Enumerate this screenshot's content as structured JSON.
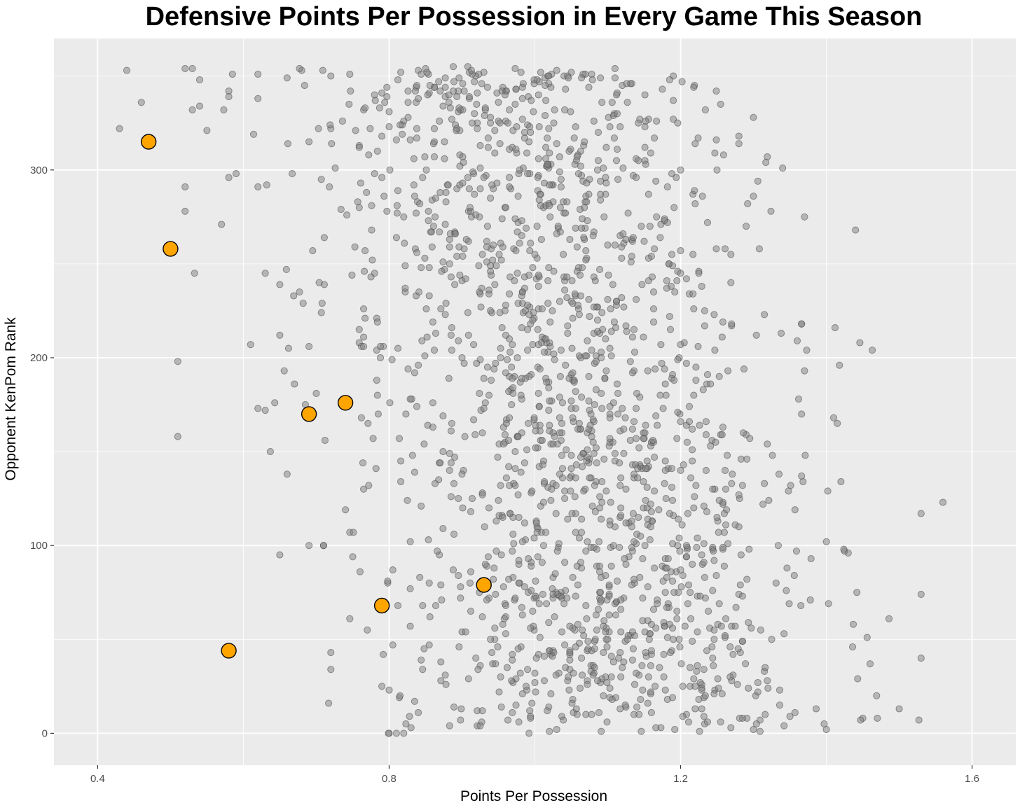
{
  "chart_data": {
    "type": "scatter",
    "title": "Defensive Points Per Possession in Every Game This Season",
    "xlabel": "Points Per Possession",
    "ylabel": "Opponent KenPom Rank",
    "xlim": [
      0.34,
      1.66
    ],
    "ylim": [
      -17,
      370
    ],
    "x_ticks": [
      0.4,
      0.8,
      1.2,
      1.6
    ],
    "x_tick_labels": [
      "0.4",
      "0.8",
      "1.2",
      "1.6"
    ],
    "y_ticks": [
      0,
      100,
      200,
      300
    ],
    "y_tick_labels": [
      "0",
      "100",
      "200",
      "300"
    ],
    "grid": true,
    "legend": "none",
    "colors": {
      "panel_background": "#ebebeb",
      "grid_major": "#ffffff",
      "background_point_fill": "#7f7f7f",
      "background_point_stroke": "#4d4d4d",
      "highlight_fill": "#ffa500",
      "highlight_stroke": "#000000"
    },
    "series": [
      {
        "role": "background",
        "approx_point_count": 1900,
        "x_range": [
          0.43,
          1.57
        ],
        "y_range": [
          0,
          355
        ],
        "points": [
          [
            0.44,
            353
          ],
          [
            0.46,
            336
          ],
          [
            0.43,
            322
          ],
          [
            0.52,
            354
          ],
          [
            0.53,
            354
          ],
          [
            0.53,
            332
          ],
          [
            0.54,
            334
          ],
          [
            0.54,
            348
          ],
          [
            0.55,
            321
          ],
          [
            0.57,
            271
          ],
          [
            0.58,
            342
          ],
          [
            0.58,
            339
          ],
          [
            0.58,
            296
          ],
          [
            0.59,
            298
          ],
          [
            0.52,
            291
          ],
          [
            0.52,
            278
          ],
          [
            0.51,
            198
          ],
          [
            0.51,
            158
          ],
          [
            0.61,
            207
          ],
          [
            0.62,
            173
          ],
          [
            0.63,
            172
          ],
          [
            0.62,
            291
          ],
          [
            0.63,
            245
          ],
          [
            0.65,
            239
          ],
          [
            0.65,
            212
          ],
          [
            0.66,
            138
          ],
          [
            0.65,
            95
          ],
          [
            0.67,
            186
          ],
          [
            0.69,
            206
          ],
          [
            0.7,
            181
          ],
          [
            0.69,
            100
          ],
          [
            0.71,
            100
          ],
          [
            0.72,
            43
          ],
          [
            0.72,
            34
          ],
          [
            0.74,
            119
          ],
          [
            0.75,
            94
          ],
          [
            0.76,
            86
          ],
          [
            0.77,
            55
          ],
          [
            0.79,
            25
          ],
          [
            0.8,
            23
          ],
          [
            0.8,
            0
          ],
          [
            0.81,
            0
          ],
          [
            0.82,
            0
          ],
          [
            0.83,
            3
          ],
          [
            0.84,
            11
          ],
          [
            1.02,
            1
          ],
          [
            1.03,
            2
          ],
          [
            1.07,
            10
          ],
          [
            1.3,
            2
          ],
          [
            1.4,
            2
          ],
          [
            1.45,
            8
          ],
          [
            1.47,
            8
          ],
          [
            1.5,
            13
          ],
          [
            1.53,
            40
          ],
          [
            1.53,
            74
          ],
          [
            1.53,
            117
          ],
          [
            1.56,
            123
          ],
          [
            1.41,
            168
          ],
          [
            1.36,
            209
          ],
          [
            1.34,
            301
          ],
          [
            1.37,
            275
          ],
          [
            1.28,
            318
          ],
          [
            1.28,
            314
          ],
          [
            1.3,
            286
          ],
          [
            1.29,
            270
          ],
          [
            1.2,
            300
          ],
          [
            1.25,
            300
          ],
          [
            1.22,
            282
          ],
          [
            1.19,
            350
          ],
          [
            1.19,
            337
          ],
          [
            1.11,
            354
          ],
          [
            1.05,
            352
          ],
          [
            1.04,
            350
          ],
          [
            0.93,
            352
          ],
          [
            0.84,
            353
          ],
          [
            0.72,
            350
          ],
          [
            0.68,
            353
          ],
          [
            0.66,
            349
          ],
          [
            0.62,
            351
          ],
          [
            0.62,
            338
          ],
          [
            0.71,
            100
          ],
          [
            1.42,
            134
          ],
          [
            1.4,
            102
          ],
          [
            1.43,
            96
          ],
          [
            1.46,
            37
          ]
        ]
      },
      {
        "role": "highlight",
        "points": [
          [
            0.47,
            315
          ],
          [
            0.5,
            258
          ],
          [
            0.58,
            44
          ],
          [
            0.69,
            170
          ],
          [
            0.74,
            176
          ],
          [
            0.79,
            68
          ],
          [
            0.93,
            79
          ]
        ]
      }
    ]
  }
}
